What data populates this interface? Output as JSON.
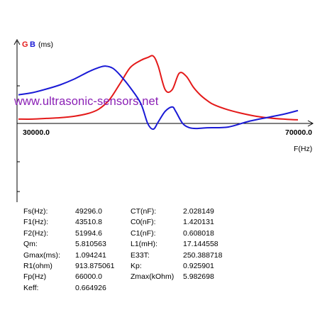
{
  "chart_data": {
    "type": "line",
    "ylabel": {
      "g": "G",
      "b": "B",
      "unit": "(ms)"
    },
    "xlabel": "F(Hz)",
    "x_tick_labels": [
      "30000.0",
      "70000.0"
    ],
    "xlim": [
      30000,
      70000
    ],
    "colors": {
      "g": "#e41a1a",
      "b": "#1a1ad6",
      "axis": "#000000",
      "watermark": "#8a1fb5"
    },
    "series": [
      {
        "key": "g",
        "x": [
          30000,
          32000,
          34000,
          36000,
          38000,
          40000,
          41500,
          43000,
          44500,
          46000,
          47500,
          48500,
          49300,
          50000,
          51000,
          52000,
          53000,
          54000,
          55000,
          56000,
          57000,
          58000,
          60000,
          62000,
          64000,
          66000,
          68000,
          70000
        ],
        "values": [
          0.06,
          0.06,
          0.07,
          0.08,
          0.1,
          0.14,
          0.2,
          0.33,
          0.55,
          0.78,
          0.88,
          0.92,
          0.94,
          0.8,
          0.47,
          0.47,
          0.7,
          0.66,
          0.51,
          0.4,
          0.32,
          0.26,
          0.19,
          0.14,
          0.1,
          0.075,
          0.06,
          0.05
        ]
      },
      {
        "key": "b",
        "x": [
          30000,
          32000,
          34000,
          36000,
          38000,
          40000,
          41500,
          42500,
          43500,
          44500,
          46000,
          47500,
          48500,
          49300,
          50000,
          51000,
          52000,
          52500,
          53500,
          54500,
          55500,
          57000,
          60000,
          63000,
          66000,
          68000,
          70000
        ],
        "values": [
          0.4,
          0.43,
          0.48,
          0.54,
          0.62,
          0.72,
          0.78,
          0.8,
          0.77,
          0.68,
          0.5,
          0.28,
          0.0,
          -0.08,
          0.02,
          0.17,
          0.23,
          0.17,
          0.0,
          -0.06,
          -0.07,
          -0.06,
          -0.05,
          0.03,
          0.09,
          0.13,
          0.18
        ]
      }
    ],
    "ylim": [
      -0.15,
      1.05
    ]
  },
  "watermark_text": "www.ultrasonic-sensors.net",
  "params": [
    {
      "k1": "Fs(Hz):",
      "v1": "49296.0",
      "k2": "CT(nF):",
      "v2": "2.028149"
    },
    {
      "k1": "F1(Hz):",
      "v1": "43510.8",
      "k2": "C0(nF):",
      "v2": "1.420131"
    },
    {
      "k1": "F2(Hz):",
      "v1": "51994.6",
      "k2": "C1(nF):",
      "v2": "0.608018"
    },
    {
      "k1": "Qm:",
      "v1": "5.810563",
      "k2": "L1(mH):",
      "v2": "17.144558"
    },
    {
      "k1": "Gmax(ms):",
      "v1": "1.094241",
      "k2": "E33T:",
      "v2": "250.388718"
    },
    {
      "k1": "R1(ohm)",
      "v1": "913.875061",
      "k2": "Kp:",
      "v2": "0.925901"
    },
    {
      "k1": "Fp(Hz)",
      "v1": "66000.0",
      "k2": "Zmax(kOhm)",
      "v2": "5.982698"
    },
    {
      "k1": "Keff:",
      "v1": "0.664926",
      "k2": "",
      "v2": ""
    }
  ]
}
